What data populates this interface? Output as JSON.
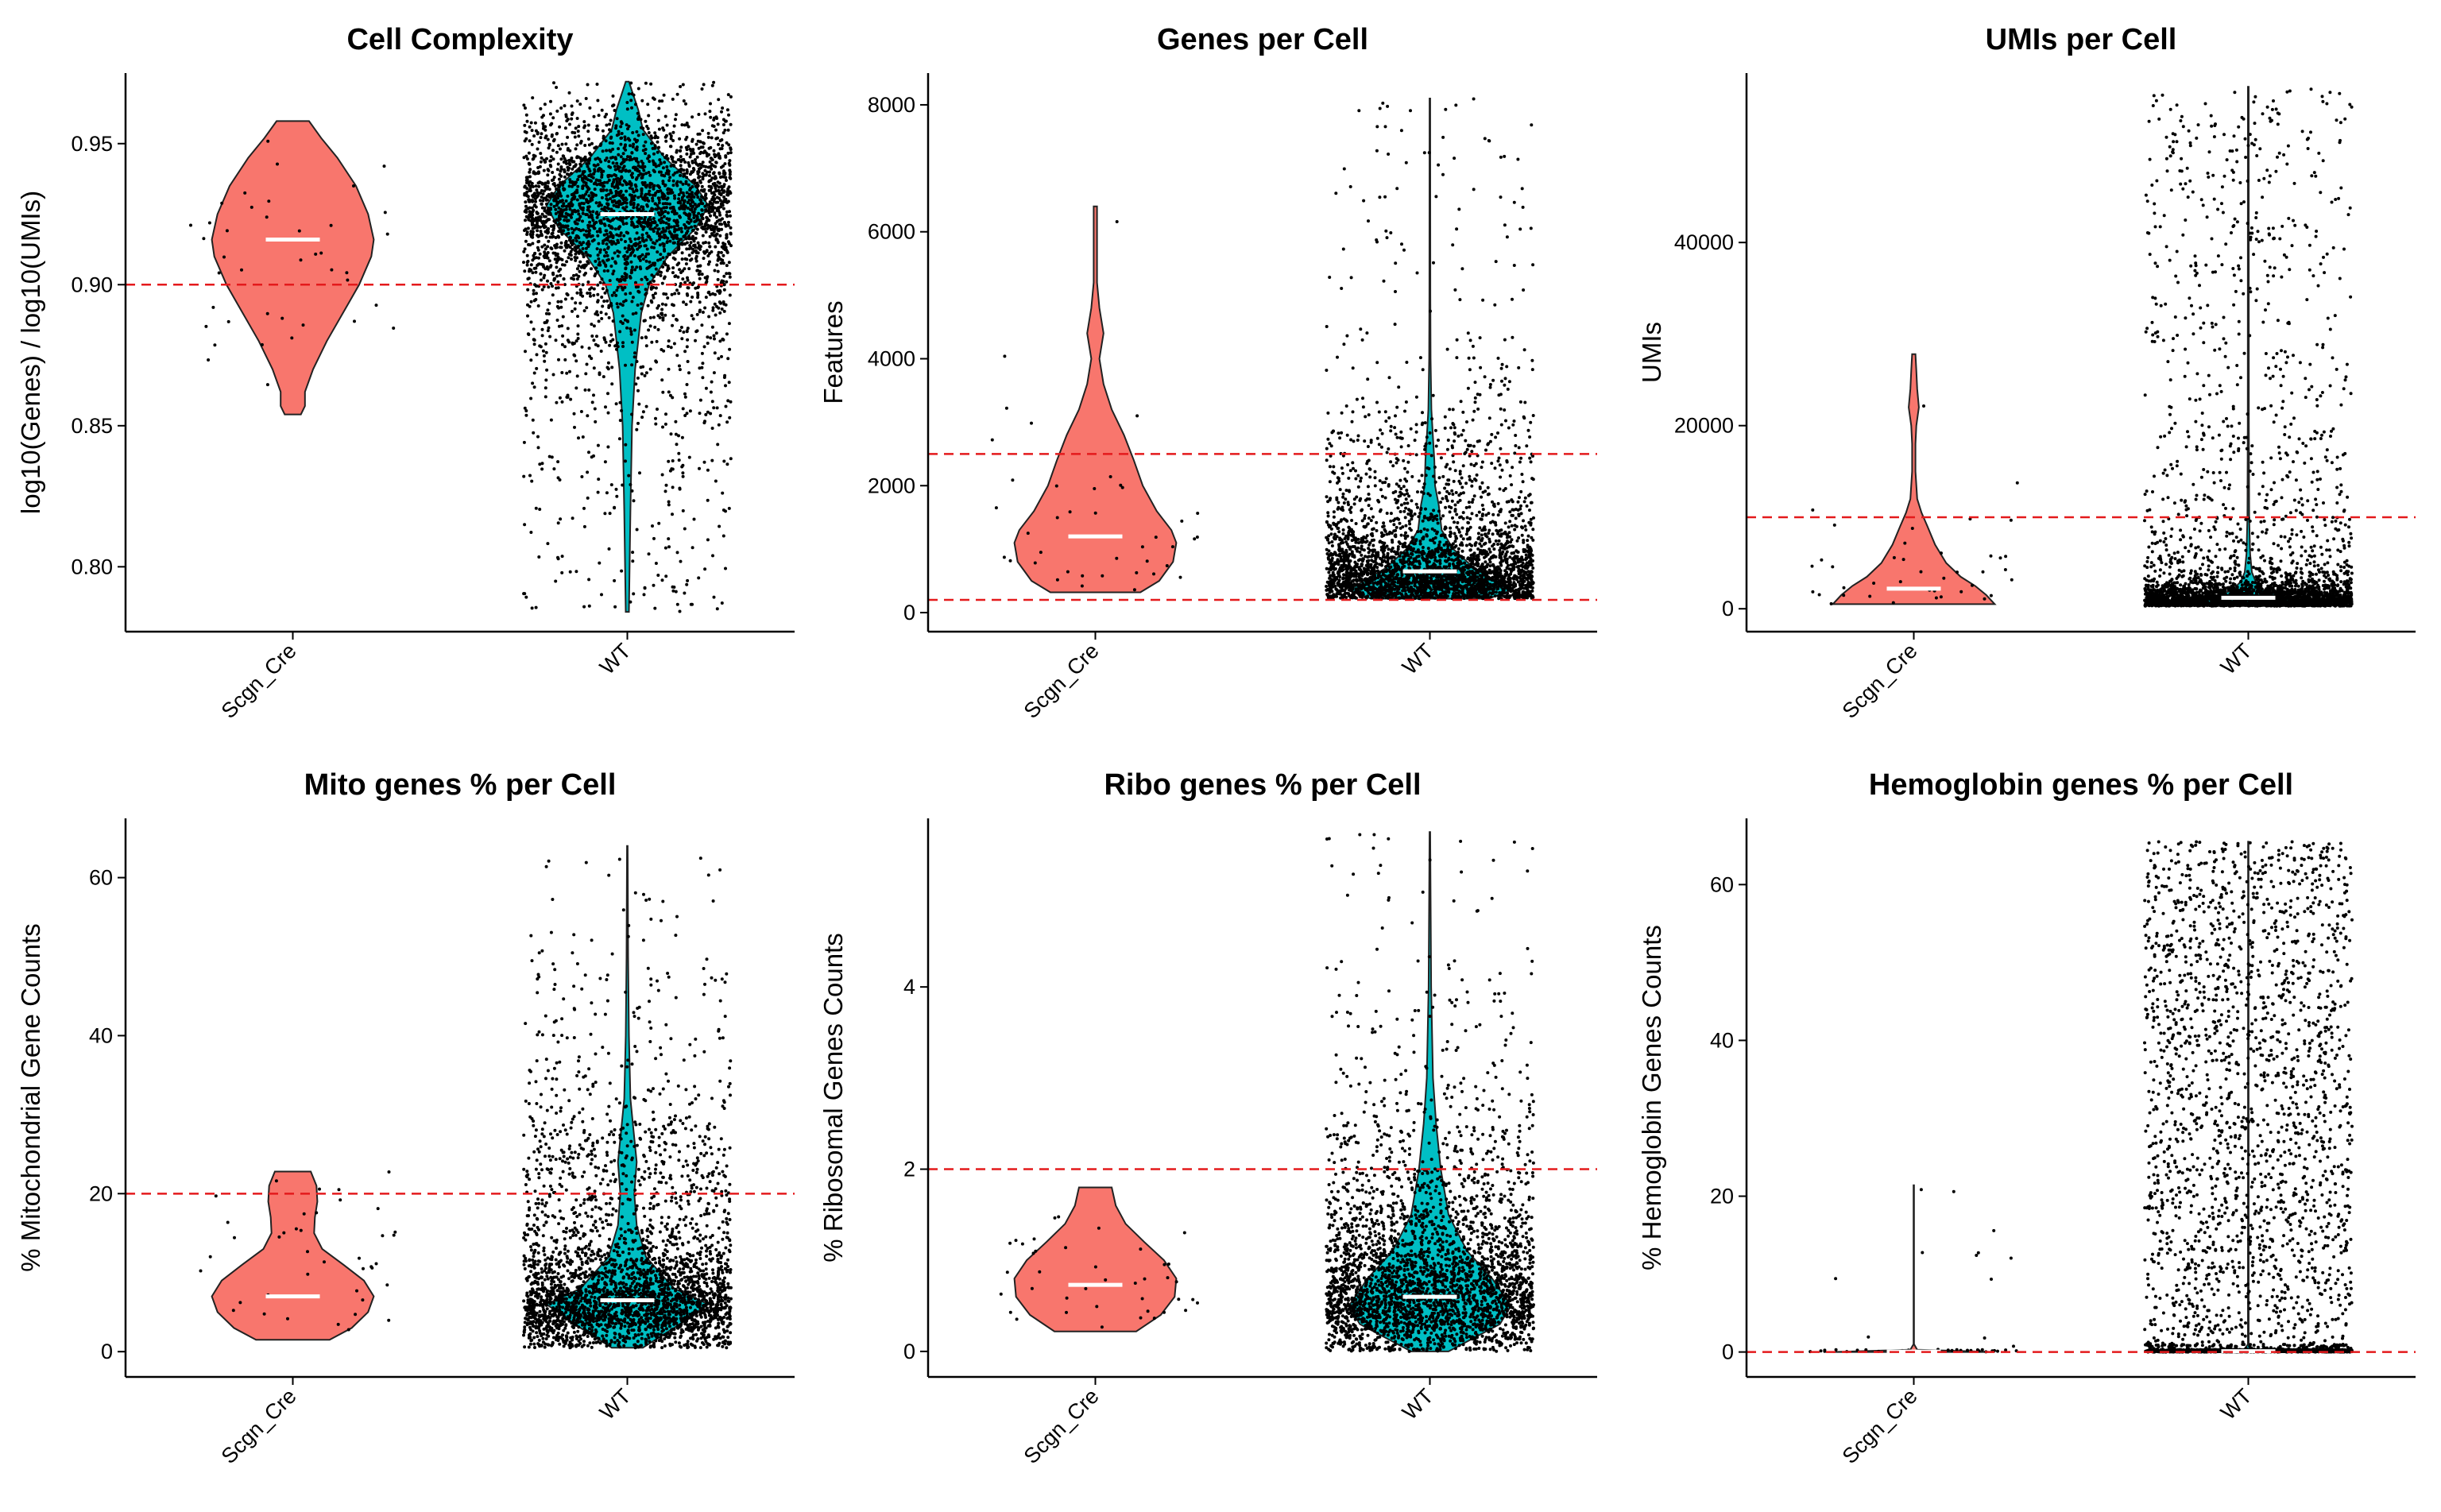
{
  "colors": {
    "group_a": "#F8766D",
    "group_b": "#00BFC4",
    "threshold": "#E41A1C",
    "median": "#FFFFFF",
    "points": "#000000"
  },
  "chart_data": [
    {
      "type": "violin",
      "title": "Cell Complexity",
      "ylabel": "log10(Genes) / log10(UMIs)",
      "categories": [
        "Scgn_Cre",
        "WT"
      ],
      "yticks": [
        0.8,
        0.85,
        0.9,
        0.95
      ],
      "ytick_labels": [
        "0.80",
        "0.85",
        "0.90",
        "0.95"
      ],
      "ylim": [
        0.777,
        0.975
      ],
      "thresholds": [
        0.9
      ],
      "series": [
        {
          "category": "Scgn_Cre",
          "median": 0.916,
          "min": 0.854,
          "max": 0.958,
          "density": [
            [
              0.854,
              0.1
            ],
            [
              0.857,
              0.15
            ],
            [
              0.862,
              0.15
            ],
            [
              0.87,
              0.25
            ],
            [
              0.88,
              0.42
            ],
            [
              0.89,
              0.62
            ],
            [
              0.9,
              0.82
            ],
            [
              0.91,
              0.97
            ],
            [
              0.916,
              1.0
            ],
            [
              0.925,
              0.93
            ],
            [
              0.935,
              0.78
            ],
            [
              0.945,
              0.55
            ],
            [
              0.952,
              0.35
            ],
            [
              0.958,
              0.2
            ]
          ],
          "n_points": 40,
          "spread": 0.02
        },
        {
          "category": "WT",
          "median": 0.925,
          "min": 0.784,
          "max": 0.972,
          "density": [
            [
              0.784,
              0.01
            ],
            [
              0.82,
              0.02
            ],
            [
              0.85,
              0.03
            ],
            [
              0.87,
              0.05
            ],
            [
              0.89,
              0.09
            ],
            [
              0.9,
              0.14
            ],
            [
              0.91,
              0.26
            ],
            [
              0.92,
              0.44
            ],
            [
              0.928,
              0.52
            ],
            [
              0.935,
              0.44
            ],
            [
              0.945,
              0.24
            ],
            [
              0.955,
              0.1
            ],
            [
              0.962,
              0.07
            ],
            [
              0.967,
              0.04
            ],
            [
              0.972,
              0.01
            ]
          ],
          "n_points": 3200,
          "spread": 0.02
        }
      ]
    },
    {
      "type": "violin",
      "title": "Genes per Cell",
      "ylabel": "Features",
      "categories": [
        "Scgn_Cre",
        "WT"
      ],
      "yticks": [
        0,
        2000,
        4000,
        6000,
        8000
      ],
      "ytick_labels": [
        "0",
        "2000",
        "4000",
        "6000",
        "8000"
      ],
      "ylim": [
        -300,
        8500
      ],
      "thresholds": [
        200,
        2500
      ],
      "series": [
        {
          "category": "Scgn_Cre",
          "median": 1200,
          "min": 320,
          "max": 6400,
          "density": [
            [
              320,
              0.55
            ],
            [
              500,
              0.78
            ],
            [
              800,
              0.95
            ],
            [
              1100,
              0.99
            ],
            [
              1300,
              0.93
            ],
            [
              1600,
              0.75
            ],
            [
              2000,
              0.58
            ],
            [
              2400,
              0.47
            ],
            [
              2800,
              0.35
            ],
            [
              3200,
              0.2
            ],
            [
              3600,
              0.1
            ],
            [
              4000,
              0.05
            ],
            [
              4400,
              0.1
            ],
            [
              4800,
              0.05
            ],
            [
              5200,
              0.02
            ],
            [
              6400,
              0.02
            ]
          ],
          "n_points": 40,
          "spread": 1500
        },
        {
          "category": "WT",
          "median": 650,
          "min": 220,
          "max": 8100,
          "density": [
            [
              220,
              0.4
            ],
            [
              350,
              0.55
            ],
            [
              500,
              0.45
            ],
            [
              700,
              0.3
            ],
            [
              1000,
              0.16
            ],
            [
              1300,
              0.08
            ],
            [
              1700,
              0.06
            ],
            [
              2000,
              0.035
            ],
            [
              2400,
              0.03
            ],
            [
              2800,
              0.02
            ],
            [
              3200,
              0.01
            ],
            [
              4000,
              0.005
            ],
            [
              5000,
              0.003
            ],
            [
              8100,
              0.002
            ]
          ],
          "n_points": 3200,
          "spread": 450
        }
      ]
    },
    {
      "type": "violin",
      "title": "UMIs per Cell",
      "ylabel": "UMIs",
      "categories": [
        "Scgn_Cre",
        "WT"
      ],
      "yticks": [
        0,
        20000,
        40000
      ],
      "ytick_labels": [
        "0",
        "20000",
        "40000"
      ],
      "ylim": [
        -2500,
        58500
      ],
      "thresholds": [
        10000
      ],
      "series": [
        {
          "category": "Scgn_Cre",
          "median": 2200,
          "min": 500,
          "max": 27800,
          "density": [
            [
              500,
              0.95
            ],
            [
              1500,
              0.85
            ],
            [
              2500,
              0.72
            ],
            [
              3500,
              0.55
            ],
            [
              5000,
              0.38
            ],
            [
              7000,
              0.25
            ],
            [
              9000,
              0.16
            ],
            [
              10500,
              0.09
            ],
            [
              12000,
              0.04
            ],
            [
              15000,
              0.02
            ],
            [
              18000,
              0.02
            ],
            [
              20000,
              0.03
            ],
            [
              22000,
              0.06
            ],
            [
              24000,
              0.04
            ],
            [
              26000,
              0.03
            ],
            [
              27800,
              0.02
            ]
          ],
          "n_points": 40,
          "spread": 4000
        },
        {
          "category": "WT",
          "median": 1200,
          "min": 300,
          "max": 57000,
          "density": [
            [
              300,
              0.45
            ],
            [
              600,
              0.4
            ],
            [
              1200,
              0.22
            ],
            [
              2000,
              0.09
            ],
            [
              3000,
              0.04
            ],
            [
              4000,
              0.02
            ],
            [
              6000,
              0.01
            ],
            [
              10000,
              0.005
            ],
            [
              20000,
              0.003
            ],
            [
              57000,
              0.002
            ]
          ],
          "n_points": 3200,
          "spread": 1500
        }
      ]
    },
    {
      "type": "violin",
      "title": "Mito genes % per Cell",
      "ylabel": "% Mitochondrial Gene Counts",
      "categories": [
        "Scgn_Cre",
        "WT"
      ],
      "yticks": [
        0,
        20,
        40,
        60
      ],
      "ytick_labels": [
        "0",
        "20",
        "40",
        "60"
      ],
      "ylim": [
        -3.2,
        67.5
      ],
      "thresholds": [
        20
      ],
      "series": [
        {
          "category": "Scgn_Cre",
          "median": 7,
          "min": 1.5,
          "max": 22.8,
          "density": [
            [
              1.5,
              0.45
            ],
            [
              3,
              0.72
            ],
            [
              5,
              0.92
            ],
            [
              7,
              0.99
            ],
            [
              9,
              0.87
            ],
            [
              11,
              0.62
            ],
            [
              13,
              0.36
            ],
            [
              15,
              0.26
            ],
            [
              17,
              0.27
            ],
            [
              19,
              0.3
            ],
            [
              21,
              0.29
            ],
            [
              22.8,
              0.22
            ]
          ],
          "n_points": 40,
          "spread": 5
        },
        {
          "category": "WT",
          "median": 6.5,
          "min": 0.5,
          "max": 64,
          "density": [
            [
              0.5,
              0.1
            ],
            [
              3,
              0.3
            ],
            [
              6,
              0.52
            ],
            [
              8,
              0.3
            ],
            [
              12,
              0.12
            ],
            [
              16,
              0.06
            ],
            [
              20,
              0.045
            ],
            [
              24,
              0.06
            ],
            [
              28,
              0.04
            ],
            [
              32,
              0.02
            ],
            [
              40,
              0.01
            ],
            [
              50,
              0.005
            ],
            [
              64,
              0.002
            ]
          ],
          "n_points": 3200,
          "spread": 3.5
        }
      ]
    },
    {
      "type": "violin",
      "title": "Ribo genes % per Cell",
      "ylabel": "% Ribosomal Genes Counts",
      "categories": [
        "Scgn_Cre",
        "WT"
      ],
      "yticks": [
        0,
        2,
        4
      ],
      "ytick_labels": [
        "0",
        "2",
        "4"
      ],
      "ylim": [
        -0.28,
        5.85
      ],
      "thresholds": [
        2
      ],
      "series": [
        {
          "category": "Scgn_Cre",
          "median": 0.73,
          "min": 0.22,
          "max": 1.8,
          "density": [
            [
              0.22,
              0.5
            ],
            [
              0.4,
              0.8
            ],
            [
              0.6,
              0.97
            ],
            [
              0.8,
              0.99
            ],
            [
              1.0,
              0.84
            ],
            [
              1.2,
              0.6
            ],
            [
              1.4,
              0.37
            ],
            [
              1.6,
              0.25
            ],
            [
              1.8,
              0.2
            ]
          ],
          "n_points": 40,
          "spread": 0.35
        },
        {
          "category": "WT",
          "median": 0.6,
          "min": 0.0,
          "max": 5.7,
          "density": [
            [
              0.0,
              0.12
            ],
            [
              0.3,
              0.45
            ],
            [
              0.5,
              0.52
            ],
            [
              0.8,
              0.4
            ],
            [
              1.1,
              0.24
            ],
            [
              1.5,
              0.12
            ],
            [
              2.0,
              0.07
            ],
            [
              2.5,
              0.04
            ],
            [
              3.0,
              0.02
            ],
            [
              4.0,
              0.008
            ],
            [
              5.7,
              0.002
            ]
          ],
          "n_points": 3200,
          "spread": 0.35
        }
      ]
    },
    {
      "type": "violin",
      "title": "Hemoglobin genes % per Cell",
      "ylabel": "% Hemoglobin Genes Counts",
      "categories": [
        "Scgn_Cre",
        "WT"
      ],
      "yticks": [
        0,
        20,
        40,
        60
      ],
      "ytick_labels": [
        "0",
        "20",
        "40",
        "60"
      ],
      "ylim": [
        -3.2,
        68.5
      ],
      "thresholds": [
        0
      ],
      "series": [
        {
          "category": "Scgn_Cre",
          "median": 0.05,
          "min": 0.0,
          "max": 21.4,
          "density": [
            [
              0.0,
              0.95
            ],
            [
              0.3,
              0.04
            ],
            [
              1,
              0.003
            ],
            [
              21.4,
              0.003
            ]
          ],
          "n_points": 40,
          "spread": 0.1
        },
        {
          "category": "WT",
          "median": 0.1,
          "min": 0.0,
          "max": 65.5,
          "density": [
            [
              0.0,
              0.95
            ],
            [
              0.3,
              0.05
            ],
            [
              1,
              0.005
            ],
            [
              65.5,
              0.003
            ]
          ],
          "n_points": 3200,
          "spread": 0.1
        }
      ]
    }
  ]
}
